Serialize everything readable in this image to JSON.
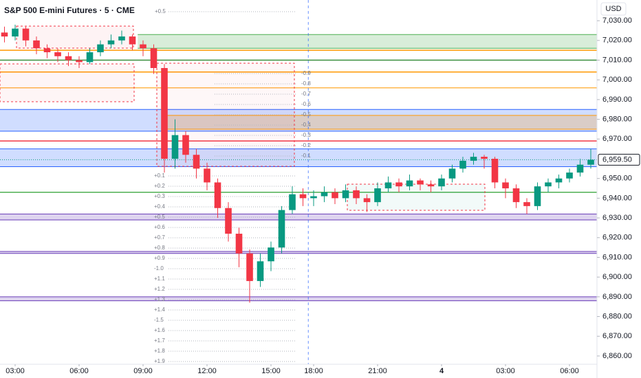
{
  "chart_data": {
    "type": "candlestick",
    "title": "S&P 500 E-mini Futures · 5 · CME",
    "currency": "USD",
    "up_color": "#089981",
    "down_color": "#f23645",
    "xlim": [
      -0.42,
      55.58
    ],
    "xticks": [
      {
        "value": 1,
        "label": "03:00"
      },
      {
        "value": 7,
        "label": "06:00"
      },
      {
        "value": 13,
        "label": "09:00"
      },
      {
        "value": 19,
        "label": "12:00"
      },
      {
        "value": 25,
        "label": "15:00"
      },
      {
        "value": 29,
        "label": "18:00"
      },
      {
        "value": 35,
        "label": "21:00"
      },
      {
        "value": 41,
        "label": "4"
      },
      {
        "value": 47,
        "label": "03:00"
      },
      {
        "value": 53,
        "label": "06:00"
      }
    ],
    "ylim": [
      6855.8,
      7040.5
    ],
    "yticks": [
      {
        "value": 6860,
        "label": "6,860.00"
      },
      {
        "value": 6870,
        "label": "6,870.00"
      },
      {
        "value": 6880,
        "label": "6,880.00"
      },
      {
        "value": 6890,
        "label": "6,890.00"
      },
      {
        "value": 6900,
        "label": "6,900.00"
      },
      {
        "value": 6910,
        "label": "6,910.00"
      },
      {
        "value": 6920,
        "label": "6,920.00"
      },
      {
        "value": 6930,
        "label": "6,930.00"
      },
      {
        "value": 6940,
        "label": "6,940.00"
      },
      {
        "value": 6950,
        "label": "6,950.00"
      },
      {
        "value": 6970,
        "label": "6,970.00"
      },
      {
        "value": 6980,
        "label": "6,980.00"
      },
      {
        "value": 6990,
        "label": "6,990.00"
      },
      {
        "value": 7000,
        "label": "7,000.00"
      },
      {
        "value": 7010,
        "label": "7,010.00"
      },
      {
        "value": 7020,
        "label": "7,020.00"
      },
      {
        "value": 7030,
        "label": "7,030.00"
      }
    ],
    "last_price": {
      "value": 6959.5,
      "label": "6,959.50"
    },
    "session_start": 29,
    "open": [
      7024,
      7022,
      7026,
      7020,
      7016,
      7014,
      7012,
      7010,
      7009,
      7014,
      7018,
      7020,
      7022,
      7018,
      7016,
      7006,
      6960,
      6972,
      6962,
      6955,
      6948,
      6935,
      6922,
      6912,
      6898,
      6908,
      6915,
      6934,
      6942,
      6940,
      6941,
      6943,
      6940,
      6944,
      6940,
      6938,
      6945,
      6948,
      6946,
      6949,
      6947,
      6946,
      6950,
      6955,
      6959,
      6961,
      6960,
      6948,
      6945,
      6938,
      6936,
      6946,
      6948,
      6950,
      6953,
      6957
    ],
    "high": [
      7027,
      7028,
      7027,
      7022,
      7018,
      7016,
      7014,
      7012,
      7016,
      7020,
      7023,
      7025,
      7023,
      7020,
      7018,
      7008,
      6980,
      6974,
      6965,
      6958,
      6950,
      6938,
      6925,
      6914,
      6912,
      6918,
      6936,
      6946,
      6945,
      6944,
      6946,
      6945,
      6947,
      6946,
      6942,
      6948,
      6951,
      6950,
      6952,
      6950,
      6949,
      6952,
      6957,
      6961,
      6963,
      6962,
      6961,
      6950,
      6947,
      6940,
      6948,
      6950,
      6952,
      6955,
      6960,
      6965
    ],
    "low": [
      7019,
      7020,
      7017,
      7013,
      7011,
      7009,
      7007,
      7006,
      7008,
      7012,
      7016,
      7018,
      7015,
      7012,
      7003,
      6953,
      6955,
      6958,
      6950,
      6944,
      6930,
      6918,
      6905,
      6887,
      6895,
      6903,
      6912,
      6932,
      6936,
      6936,
      6938,
      6937,
      6938,
      6937,
      6933,
      6936,
      6943,
      6943,
      6944,
      6944,
      6943,
      6944,
      6948,
      6953,
      6957,
      6955,
      6945,
      6940,
      6935,
      6932,
      6934,
      6943,
      6945,
      6948,
      6951,
      6955
    ],
    "close": [
      7022,
      7026,
      7020,
      7016,
      7014,
      7012,
      7010,
      7009,
      7014,
      7018,
      7020,
      7022,
      7018,
      7016,
      7006,
      6960,
      6972,
      6962,
      6955,
      6948,
      6935,
      6922,
      6912,
      6898,
      6908,
      6915,
      6934,
      6942,
      6940,
      6941,
      6943,
      6940,
      6944,
      6940,
      6938,
      6945,
      6948,
      6946,
      6949,
      6947,
      6946,
      6950,
      6955,
      6959,
      6961,
      6960,
      6948,
      6945,
      6938,
      6936,
      6946,
      6948,
      6950,
      6953,
      6957,
      6959.5
    ],
    "bands": [
      {
        "from": 7016,
        "to": 7023,
        "start": 12.5,
        "color": "#4caf50"
      },
      {
        "from": 6974,
        "to": 6985,
        "start": -0.42,
        "color": "#2962ff"
      },
      {
        "from": 6975,
        "to": 6982,
        "start": 15,
        "color": "#ff9800"
      },
      {
        "from": 6956,
        "to": 6965,
        "start": -0.42,
        "color": "#2962ff"
      },
      {
        "from": 6929,
        "to": 6932,
        "start": -0.42,
        "color": "#673ab7"
      },
      {
        "from": 6912,
        "to": 6913,
        "start": -0.42,
        "color": "#673ab7"
      },
      {
        "from": 6888,
        "to": 6890,
        "start": -0.42,
        "color": "#673ab7"
      }
    ],
    "levels": [
      {
        "value": 7015,
        "color": "#ff9800"
      },
      {
        "value": 7010,
        "color": "#388e3c"
      },
      {
        "value": 7004,
        "color": "#ff9800"
      },
      {
        "value": 6996,
        "color": "#ffb74d"
      },
      {
        "value": 6969,
        "color": "#f23645"
      },
      {
        "value": 6943,
        "color": "#4caf50"
      }
    ],
    "fib_top": "+0.5",
    "fib_upper": [
      "-0.9",
      "-0.8",
      "-0.7",
      "-0.6",
      "-0.5",
      "-0.4",
      "-0.3",
      "-0.2",
      "-0.1"
    ],
    "fib_lower": [
      "+0.1",
      "+0.2",
      "+0.3",
      "+0.4",
      "+0.5",
      "+0.6",
      "+0.7",
      "+0.8",
      "+0.9",
      "-1.0",
      "+1.1",
      "+1.2",
      "+1.3",
      "+1.4",
      "-1.5",
      "+1.6",
      "+1.7",
      "+1.8",
      "+1.9"
    ]
  }
}
